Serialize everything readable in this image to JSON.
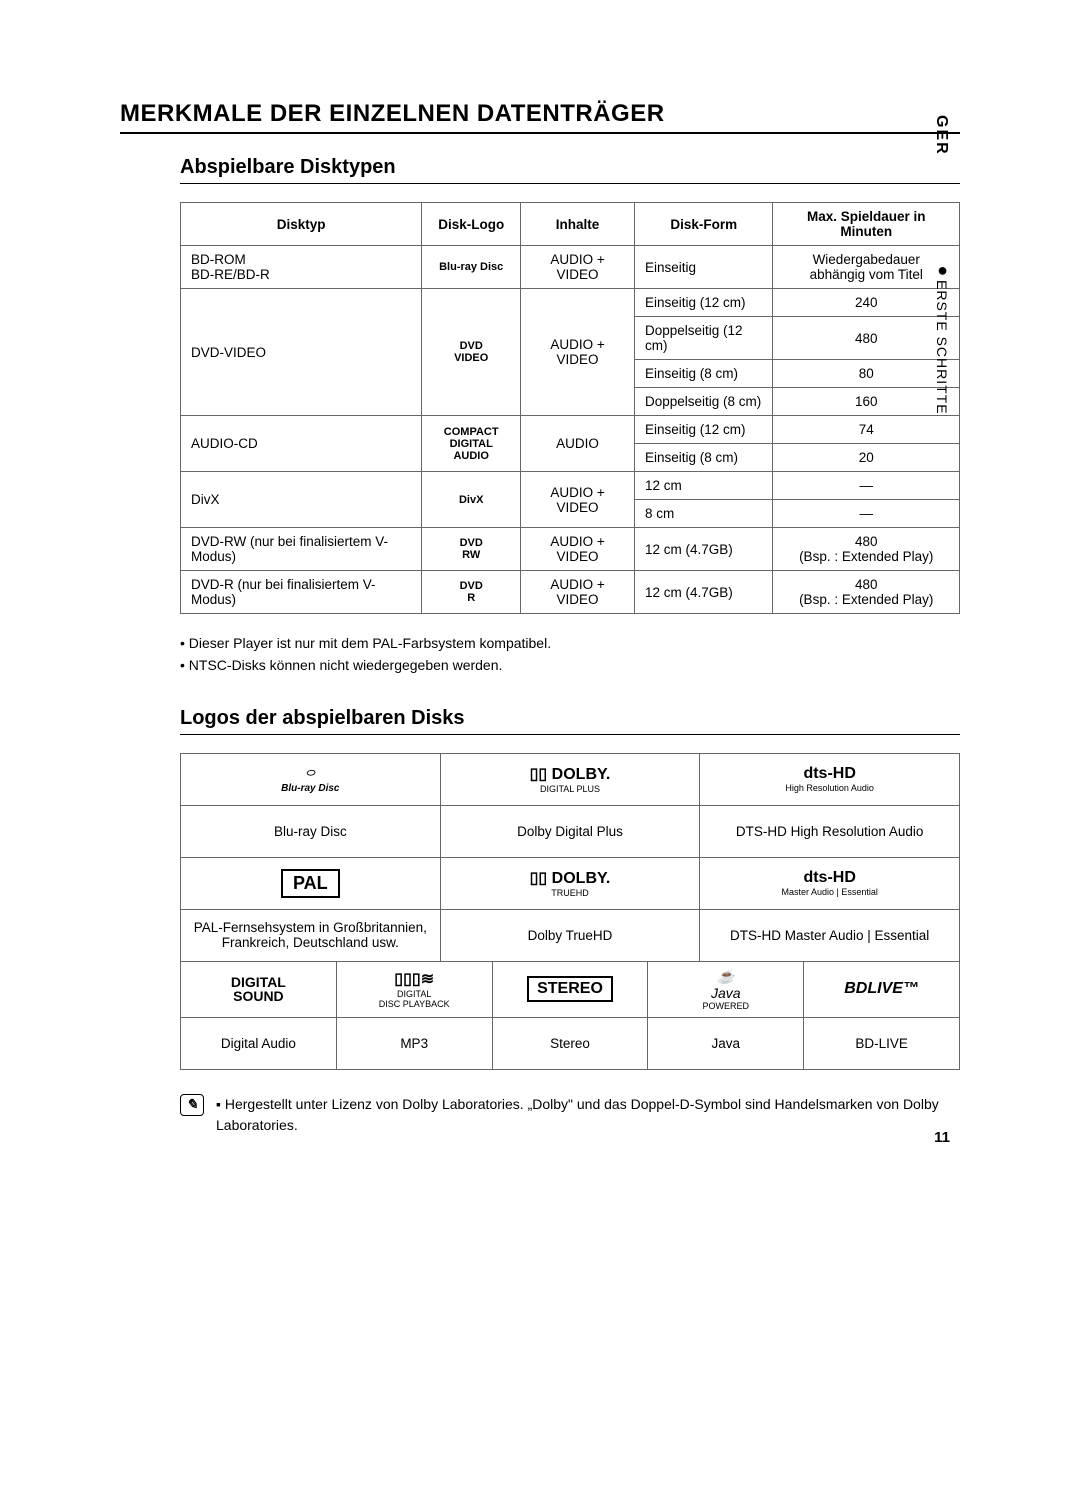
{
  "side": {
    "lang": "GER",
    "section": "ERSTE SCHRITTE"
  },
  "title": "MERKMALE DER EINZELNEN DATENTRÄGER",
  "section1": {
    "heading": "Abspielbare Disktypen",
    "headers": [
      "Disktyp",
      "Disk-Logo",
      "Inhalte",
      "Disk-Form",
      "Max. Spieldauer in Minuten"
    ],
    "rows": [
      {
        "type": "BD-ROM\nBD-RE/BD-R",
        "logo": "Blu-ray Disc",
        "content": "AUDIO + VIDEO",
        "forms": [
          "Einseitig"
        ],
        "dur": [
          "Wiedergabedauer\nabhängig vom Titel"
        ]
      },
      {
        "type": "DVD-VIDEO",
        "logo": "DVD\nVIDEO",
        "content": "AUDIO + VIDEO",
        "forms": [
          "Einseitig (12 cm)",
          "Doppelseitig (12 cm)",
          "Einseitig (8 cm)",
          "Doppelseitig (8 cm)"
        ],
        "dur": [
          "240",
          "480",
          "80",
          "160"
        ]
      },
      {
        "type": "AUDIO-CD",
        "logo": "COMPACT\nDIGITAL AUDIO",
        "content": "AUDIO",
        "forms": [
          "Einseitig (12 cm)",
          "Einseitig (8 cm)"
        ],
        "dur": [
          "74",
          "20"
        ]
      },
      {
        "type": "DivX",
        "logo": "DivX",
        "content": "AUDIO + VIDEO",
        "forms": [
          "12 cm",
          "8 cm"
        ],
        "dur": [
          "—",
          "—"
        ]
      },
      {
        "type": "DVD-RW (nur bei finalisiertem V-Modus)",
        "logo": "DVD\nRW",
        "content": "AUDIO + VIDEO",
        "forms": [
          "12 cm (4.7GB)"
        ],
        "dur": [
          "480\n(Bsp. : Extended Play)"
        ]
      },
      {
        "type": "DVD-R (nur bei finalisiertem V-Modus)",
        "logo": "DVD\nR",
        "content": "AUDIO + VIDEO",
        "forms": [
          "12 cm (4.7GB)"
        ],
        "dur": [
          "480\n(Bsp. : Extended Play)"
        ]
      }
    ],
    "notes": [
      "• Dieser Player ist nur mit dem PAL-Farbsystem kompatibel.",
      "• NTSC-Disks können nicht wiedergegeben werden."
    ]
  },
  "section2": {
    "heading": "Logos der abspielbaren Disks",
    "grid1": [
      [
        {
          "logo": "Blu-ray Disc",
          "label": "Blu-ray Disc"
        },
        {
          "logo": "DOLBY",
          "logosub": "DIGITAL PLUS",
          "label": "Dolby Digital Plus"
        },
        {
          "logo": "dts-HD",
          "logosub": "High Resolution Audio",
          "label": "DTS-HD High Resolution Audio"
        }
      ],
      [
        {
          "logo": "PAL",
          "label": "PAL-Fernsehsystem in Großbritannien, Frankreich, Deutschland usw."
        },
        {
          "logo": "DOLBY",
          "logosub": "TRUEHD",
          "label": "Dolby TrueHD"
        },
        {
          "logo": "dts-HD",
          "logosub": "Master Audio | Essential",
          "label": "DTS-HD Master Audio | Essential"
        }
      ]
    ],
    "grid2": [
      {
        "logo": "DIGITAL\nSOUND",
        "label": "Digital Audio"
      },
      {
        "logo": "MP3",
        "logosub": "DIGITAL DISC PLAYBACK",
        "label": "MP3"
      },
      {
        "logo": "STEREO",
        "label": "Stereo"
      },
      {
        "logo": "Java",
        "logosub": "POWERED",
        "label": "Java"
      },
      {
        "logo": "BD LIVE™",
        "label": "BD-LIVE"
      }
    ]
  },
  "footnote": {
    "bullet": "▪",
    "text": "Hergestellt unter Lizenz von Dolby Laboratories. „Dolby\" und das Doppel-D-Symbol sind Handelsmarken von Dolby Laboratories."
  },
  "pageNumber": "11"
}
